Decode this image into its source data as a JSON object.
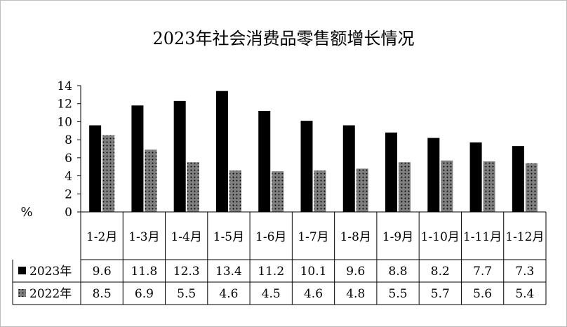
{
  "chart_data": {
    "type": "bar",
    "title": "2023年社会消费品零售额增长情况",
    "ylabel": "%",
    "xlabel": "",
    "ylim": [
      0,
      14
    ],
    "yticks": [
      "0",
      "2",
      "4",
      "6",
      "8",
      "10",
      "12",
      "14"
    ],
    "grid": false,
    "legend": "table",
    "categories": [
      "1-2月",
      "1-3月",
      "1-4月",
      "1-5月",
      "1-6月",
      "1-7月",
      "1-8月",
      "1-9月",
      "1-10月",
      "1-11月",
      "1-12月"
    ],
    "series": [
      {
        "name": "2023年",
        "values": [
          9.6,
          11.8,
          12.3,
          13.4,
          11.2,
          10.1,
          9.6,
          8.8,
          8.2,
          7.7,
          7.3
        ],
        "labels": [
          "9.6",
          "11.8",
          "12.3",
          "13.4",
          "11.2",
          "10.1",
          "9.6",
          "8.8",
          "8.2",
          "7.7",
          "7.3"
        ],
        "color": "#000000",
        "pattern": "solid"
      },
      {
        "name": "2022年",
        "values": [
          8.5,
          6.9,
          5.5,
          4.6,
          4.5,
          4.6,
          4.8,
          5.5,
          5.7,
          5.6,
          5.4
        ],
        "labels": [
          "8.5",
          "6.9",
          "5.5",
          "4.6",
          "4.5",
          "4.6",
          "4.8",
          "5.5",
          "5.7",
          "5.6",
          "5.4"
        ],
        "color": "#7f7f7f",
        "pattern": "dotted"
      }
    ]
  }
}
